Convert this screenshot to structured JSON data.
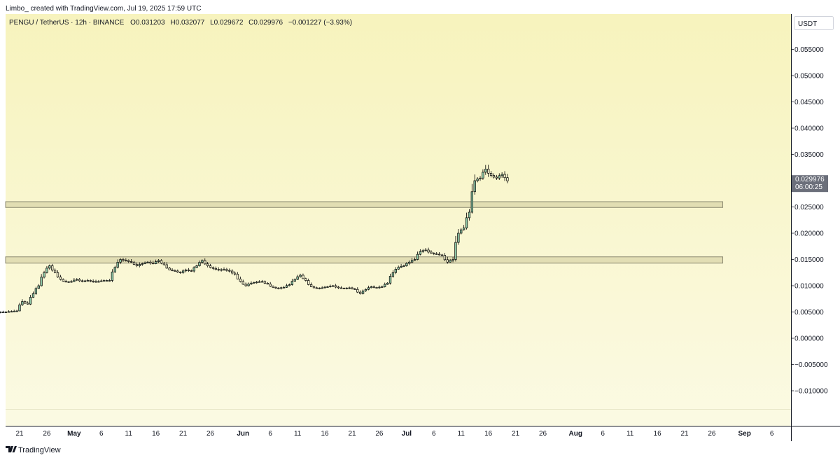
{
  "watermark": "Limbo_ created with TradingView.com, Jul 19, 2025 17:59 UTC",
  "legend": {
    "symbol": "PENGU / TetherUS · 12h · BINANCE",
    "open_label": "O",
    "open": "0.031203",
    "high_label": "H",
    "high": "0.032077",
    "low_label": "L",
    "low": "0.029672",
    "close_label": "C",
    "close": "0.029976",
    "change": "−0.001227 (−3.93%)"
  },
  "currency": "USDT",
  "last_price": {
    "value": "0.029976",
    "countdown": "06:00:25"
  },
  "brand": "TradingView",
  "colors": {
    "background_top": "#f7f3bd",
    "background_bottom": "#fbfae3",
    "up_candle": "#8fc9a8",
    "down_candle": "#fbf8d5",
    "candle_outline": "#000000",
    "zone_fill": "#d9d6a9",
    "zone_border": "#8c8a70",
    "price_tag": "#6b6f7a"
  },
  "chart_data": {
    "type": "candlestick",
    "interval": "12h",
    "y_axis": {
      "ticks": [
        "0.055000",
        "0.050000",
        "0.045000",
        "0.040000",
        "0.035000",
        "0.030000",
        "0.025000",
        "0.020000",
        "0.015000",
        "0.010000",
        "0.005000",
        "0.000000",
        "−0.005000",
        "−0.010000"
      ],
      "ylim": [
        -0.0127,
        0.0612
      ]
    },
    "x_axis": {
      "start_date": "2025-04-16",
      "end_date": "2025-09-09",
      "ticks": [
        {
          "date": "2025-04-21",
          "label": "21"
        },
        {
          "date": "2025-04-26",
          "label": "26"
        },
        {
          "date": "2025-05-01",
          "label": "May"
        },
        {
          "date": "2025-05-06",
          "label": "6"
        },
        {
          "date": "2025-05-11",
          "label": "11"
        },
        {
          "date": "2025-05-16",
          "label": "16"
        },
        {
          "date": "2025-05-21",
          "label": "21"
        },
        {
          "date": "2025-05-26",
          "label": "26"
        },
        {
          "date": "2025-06-01",
          "label": "Jun"
        },
        {
          "date": "2025-06-06",
          "label": "6"
        },
        {
          "date": "2025-06-11",
          "label": "11"
        },
        {
          "date": "2025-06-16",
          "label": "16"
        },
        {
          "date": "2025-06-21",
          "label": "21"
        },
        {
          "date": "2025-06-26",
          "label": "26"
        },
        {
          "date": "2025-07-01",
          "label": "Jul"
        },
        {
          "date": "2025-07-06",
          "label": "6"
        },
        {
          "date": "2025-07-11",
          "label": "11"
        },
        {
          "date": "2025-07-16",
          "label": "16"
        },
        {
          "date": "2025-07-21",
          "label": "21"
        },
        {
          "date": "2025-07-26",
          "label": "26"
        },
        {
          "date": "2025-08-01",
          "label": "Aug"
        },
        {
          "date": "2025-08-06",
          "label": "6"
        },
        {
          "date": "2025-08-11",
          "label": "11"
        },
        {
          "date": "2025-08-16",
          "label": "16"
        },
        {
          "date": "2025-08-21",
          "label": "21"
        },
        {
          "date": "2025-08-26",
          "label": "26"
        },
        {
          "date": "2025-09-01",
          "label": "Sep"
        },
        {
          "date": "2025-09-06",
          "label": "6"
        }
      ]
    },
    "zones": [
      {
        "from_date": "2025-04-16",
        "to_date": "2025-08-28",
        "low": 0.0249,
        "high": 0.026
      },
      {
        "from_date": "2025-04-16",
        "to_date": "2025-08-28",
        "low": 0.0143,
        "high": 0.0155
      }
    ],
    "closes_daily": [
      {
        "date": "2025-04-16",
        "c": 0.0049
      },
      {
        "date": "2025-04-17",
        "c": 0.005
      },
      {
        "date": "2025-04-18",
        "c": 0.005
      },
      {
        "date": "2025-04-19",
        "c": 0.0051
      },
      {
        "date": "2025-04-20",
        "c": 0.0052
      },
      {
        "date": "2025-04-21",
        "c": 0.007
      },
      {
        "date": "2025-04-22",
        "c": 0.0065
      },
      {
        "date": "2025-04-23",
        "c": 0.0085
      },
      {
        "date": "2025-04-24",
        "c": 0.01
      },
      {
        "date": "2025-04-25",
        "c": 0.0125
      },
      {
        "date": "2025-04-26",
        "c": 0.0138
      },
      {
        "date": "2025-04-27",
        "c": 0.0125
      },
      {
        "date": "2025-04-28",
        "c": 0.0112
      },
      {
        "date": "2025-04-29",
        "c": 0.0107
      },
      {
        "date": "2025-04-30",
        "c": 0.0108
      },
      {
        "date": "2025-05-01",
        "c": 0.0112
      },
      {
        "date": "2025-05-02",
        "c": 0.0108
      },
      {
        "date": "2025-05-03",
        "c": 0.011
      },
      {
        "date": "2025-05-04",
        "c": 0.0108
      },
      {
        "date": "2025-05-05",
        "c": 0.0108
      },
      {
        "date": "2025-05-06",
        "c": 0.011
      },
      {
        "date": "2025-05-07",
        "c": 0.011
      },
      {
        "date": "2025-05-08",
        "c": 0.0135
      },
      {
        "date": "2025-05-09",
        "c": 0.015
      },
      {
        "date": "2025-05-10",
        "c": 0.0148
      },
      {
        "date": "2025-05-11",
        "c": 0.0145
      },
      {
        "date": "2025-05-12",
        "c": 0.0138
      },
      {
        "date": "2025-05-13",
        "c": 0.0142
      },
      {
        "date": "2025-05-14",
        "c": 0.0145
      },
      {
        "date": "2025-05-15",
        "c": 0.0142
      },
      {
        "date": "2025-05-16",
        "c": 0.0148
      },
      {
        "date": "2025-05-17",
        "c": 0.014
      },
      {
        "date": "2025-05-18",
        "c": 0.013
      },
      {
        "date": "2025-05-19",
        "c": 0.0128
      },
      {
        "date": "2025-05-20",
        "c": 0.0125
      },
      {
        "date": "2025-05-21",
        "c": 0.013
      },
      {
        "date": "2025-05-22",
        "c": 0.0128
      },
      {
        "date": "2025-05-23",
        "c": 0.0138
      },
      {
        "date": "2025-05-24",
        "c": 0.0148
      },
      {
        "date": "2025-05-25",
        "c": 0.0138
      },
      {
        "date": "2025-05-26",
        "c": 0.0133
      },
      {
        "date": "2025-05-27",
        "c": 0.013
      },
      {
        "date": "2025-05-28",
        "c": 0.0131
      },
      {
        "date": "2025-05-29",
        "c": 0.0128
      },
      {
        "date": "2025-05-30",
        "c": 0.0122
      },
      {
        "date": "2025-05-31",
        "c": 0.0108
      },
      {
        "date": "2025-06-01",
        "c": 0.01
      },
      {
        "date": "2025-06-02",
        "c": 0.0105
      },
      {
        "date": "2025-06-03",
        "c": 0.0107
      },
      {
        "date": "2025-06-04",
        "c": 0.0108
      },
      {
        "date": "2025-06-05",
        "c": 0.0103
      },
      {
        "date": "2025-06-06",
        "c": 0.0097
      },
      {
        "date": "2025-06-07",
        "c": 0.0095
      },
      {
        "date": "2025-06-08",
        "c": 0.0097
      },
      {
        "date": "2025-06-09",
        "c": 0.0102
      },
      {
        "date": "2025-06-10",
        "c": 0.0112
      },
      {
        "date": "2025-06-11",
        "c": 0.012
      },
      {
        "date": "2025-06-12",
        "c": 0.011
      },
      {
        "date": "2025-06-13",
        "c": 0.0098
      },
      {
        "date": "2025-06-14",
        "c": 0.0095
      },
      {
        "date": "2025-06-15",
        "c": 0.0096
      },
      {
        "date": "2025-06-16",
        "c": 0.0098
      },
      {
        "date": "2025-06-17",
        "c": 0.01
      },
      {
        "date": "2025-06-18",
        "c": 0.0096
      },
      {
        "date": "2025-06-19",
        "c": 0.0095
      },
      {
        "date": "2025-06-20",
        "c": 0.0096
      },
      {
        "date": "2025-06-21",
        "c": 0.0093
      },
      {
        "date": "2025-06-22",
        "c": 0.0085
      },
      {
        "date": "2025-06-23",
        "c": 0.0093
      },
      {
        "date": "2025-06-24",
        "c": 0.0098
      },
      {
        "date": "2025-06-25",
        "c": 0.0096
      },
      {
        "date": "2025-06-26",
        "c": 0.0098
      },
      {
        "date": "2025-06-27",
        "c": 0.0105
      },
      {
        "date": "2025-06-28",
        "c": 0.0125
      },
      {
        "date": "2025-06-29",
        "c": 0.0135
      },
      {
        "date": "2025-06-30",
        "c": 0.0138
      },
      {
        "date": "2025-07-01",
        "c": 0.0145
      },
      {
        "date": "2025-07-02",
        "c": 0.015
      },
      {
        "date": "2025-07-03",
        "c": 0.0165
      },
      {
        "date": "2025-07-04",
        "c": 0.0168
      },
      {
        "date": "2025-07-05",
        "c": 0.0162
      },
      {
        "date": "2025-07-06",
        "c": 0.016
      },
      {
        "date": "2025-07-07",
        "c": 0.0158
      },
      {
        "date": "2025-07-08",
        "c": 0.0145
      },
      {
        "date": "2025-07-09",
        "c": 0.015
      },
      {
        "date": "2025-07-10",
        "c": 0.02
      },
      {
        "date": "2025-07-11",
        "c": 0.021
      },
      {
        "date": "2025-07-12",
        "c": 0.024
      },
      {
        "date": "2025-07-13",
        "c": 0.03
      },
      {
        "date": "2025-07-14",
        "c": 0.0305
      },
      {
        "date": "2025-07-15",
        "c": 0.0322
      },
      {
        "date": "2025-07-16",
        "c": 0.031
      },
      {
        "date": "2025-07-17",
        "c": 0.0305
      },
      {
        "date": "2025-07-18",
        "c": 0.0312
      },
      {
        "date": "2025-07-19",
        "c": 0.029976
      }
    ]
  }
}
